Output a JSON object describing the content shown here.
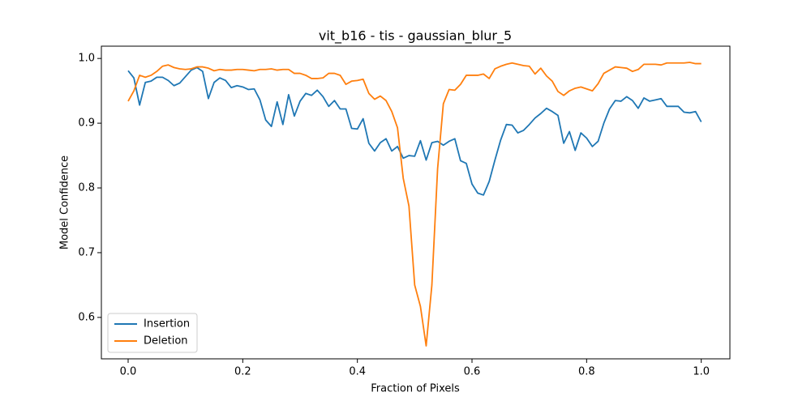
{
  "chart_data": {
    "type": "line",
    "title": "vit_b16 - tis - gaussian_blur_5",
    "x_label": "Fraction of Pixels",
    "y_label": "Model Confidence",
    "x": [
      0,
      0.01,
      0.02,
      0.03,
      0.04,
      0.05,
      0.06,
      0.07,
      0.08,
      0.09,
      0.1,
      0.11,
      0.12,
      0.13,
      0.14,
      0.15,
      0.16,
      0.17,
      0.18,
      0.19,
      0.2,
      0.21,
      0.22,
      0.23,
      0.24,
      0.25,
      0.26,
      0.27,
      0.28,
      0.29,
      0.3,
      0.31,
      0.32,
      0.33,
      0.34,
      0.35,
      0.36,
      0.37,
      0.38,
      0.39,
      0.4,
      0.41,
      0.42,
      0.43,
      0.44,
      0.45,
      0.46,
      0.47,
      0.48,
      0.49,
      0.5,
      0.51,
      0.52,
      0.53,
      0.54,
      0.55,
      0.56,
      0.57,
      0.58,
      0.59,
      0.6,
      0.61,
      0.62,
      0.63,
      0.64,
      0.65,
      0.66,
      0.67,
      0.68,
      0.69,
      0.7,
      0.71,
      0.72,
      0.73,
      0.74,
      0.75,
      0.76,
      0.77,
      0.78,
      0.79,
      0.8,
      0.81,
      0.82,
      0.83,
      0.84,
      0.85,
      0.86,
      0.87,
      0.88,
      0.89,
      0.9,
      0.91,
      0.92,
      0.93,
      0.94,
      0.95,
      0.96,
      0.97,
      0.98,
      0.99,
      1
    ],
    "series": [
      {
        "name": "Insertion",
        "color": "#1f77b4",
        "values": [
          0.981,
          0.97,
          0.928,
          0.963,
          0.965,
          0.971,
          0.971,
          0.966,
          0.958,
          0.962,
          0.972,
          0.982,
          0.986,
          0.98,
          0.938,
          0.963,
          0.97,
          0.966,
          0.955,
          0.958,
          0.956,
          0.952,
          0.953,
          0.936,
          0.905,
          0.895,
          0.933,
          0.898,
          0.944,
          0.911,
          0.934,
          0.946,
          0.943,
          0.951,
          0.941,
          0.926,
          0.935,
          0.922,
          0.922,
          0.892,
          0.891,
          0.907,
          0.869,
          0.857,
          0.87,
          0.876,
          0.857,
          0.864,
          0.846,
          0.85,
          0.849,
          0.873,
          0.843,
          0.87,
          0.872,
          0.866,
          0.872,
          0.876,
          0.842,
          0.838,
          0.806,
          0.792,
          0.789,
          0.81,
          0.843,
          0.874,
          0.898,
          0.897,
          0.885,
          0.889,
          0.898,
          0.908,
          0.915,
          0.923,
          0.918,
          0.912,
          0.869,
          0.887,
          0.858,
          0.885,
          0.877,
          0.864,
          0.872,
          0.9,
          0.922,
          0.935,
          0.934,
          0.941,
          0.935,
          0.923,
          0.939,
          0.934,
          0.936,
          0.938,
          0.926,
          0.926,
          0.926,
          0.917,
          0.916,
          0.918,
          0.902
        ]
      },
      {
        "name": "Deletion",
        "color": "#ff7f0e",
        "values": [
          0.934,
          0.95,
          0.974,
          0.971,
          0.974,
          0.98,
          0.988,
          0.99,
          0.986,
          0.984,
          0.983,
          0.984,
          0.987,
          0.987,
          0.985,
          0.981,
          0.983,
          0.982,
          0.982,
          0.983,
          0.983,
          0.982,
          0.981,
          0.983,
          0.983,
          0.984,
          0.982,
          0.983,
          0.983,
          0.977,
          0.977,
          0.974,
          0.969,
          0.969,
          0.97,
          0.977,
          0.977,
          0.974,
          0.96,
          0.965,
          0.966,
          0.968,
          0.946,
          0.937,
          0.942,
          0.935,
          0.918,
          0.893,
          0.815,
          0.772,
          0.65,
          0.617,
          0.556,
          0.65,
          0.83,
          0.93,
          0.952,
          0.951,
          0.96,
          0.974,
          0.974,
          0.974,
          0.976,
          0.969,
          0.984,
          0.988,
          0.991,
          0.993,
          0.991,
          0.989,
          0.988,
          0.976,
          0.985,
          0.973,
          0.965,
          0.949,
          0.943,
          0.95,
          0.954,
          0.956,
          0.953,
          0.95,
          0.961,
          0.977,
          0.982,
          0.987,
          0.986,
          0.985,
          0.98,
          0.983,
          0.991,
          0.991,
          0.991,
          0.99,
          0.993,
          0.993,
          0.993,
          0.993,
          0.994,
          0.992,
          0.992
        ]
      }
    ],
    "xlim": [
      -0.0467,
      1.05
    ],
    "ylim": [
      0.536,
      1.019
    ],
    "xticks": [
      {
        "value": 0,
        "label": "0.0"
      },
      0.2,
      0.4,
      0.6,
      0.8,
      {
        "value": 1,
        "label": "1.0"
      }
    ],
    "yticks": [
      0.6,
      0.7,
      0.8,
      0.9,
      {
        "value": 1,
        "label": "1.0"
      }
    ],
    "legend": "lower left"
  }
}
